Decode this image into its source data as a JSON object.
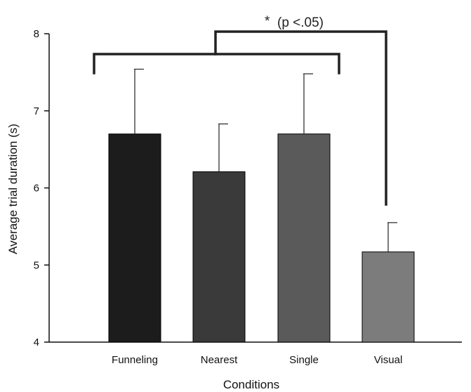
{
  "chart_data": {
    "type": "bar",
    "categories": [
      "Funneling",
      "Nearest",
      "Single",
      "Visual"
    ],
    "values": [
      6.7,
      6.21,
      6.7,
      5.17
    ],
    "error_upper": [
      7.54,
      6.83,
      7.48,
      5.55
    ],
    "colors": [
      "#1c1c1c",
      "#3a3a3a",
      "#5a5a5a",
      "#7c7c7c"
    ],
    "ylim": [
      4,
      8
    ],
    "yticks": [
      "4",
      "5",
      "6",
      "7",
      "8"
    ],
    "xlabel": "Conditions",
    "ylabel": "Average trial duration (s)",
    "grid": false,
    "annotation": {
      "star": "*",
      "text": "(p <.05)"
    }
  }
}
